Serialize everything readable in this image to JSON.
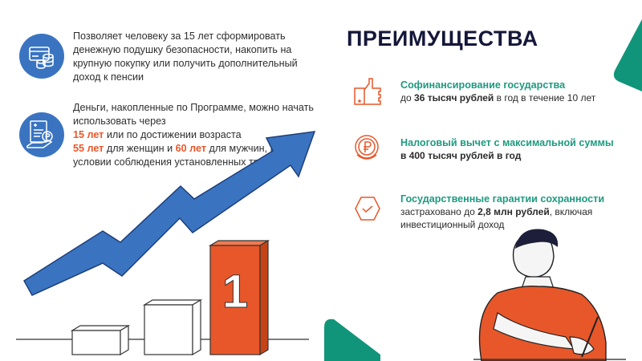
{
  "left": {
    "item1": {
      "text": "Позволяет человеку за 15 лет сформировать денежную подушку безопасности, накопить на крупную покупку или получить дополнительный доход к пенсии",
      "icon": "cards-coins-icon"
    },
    "item2": {
      "icon": "document-hand-coin-icon",
      "t1": "Деньги, накопленные по Программе, можно начать использовать через",
      "h1": "15 лет",
      "t2": " или по достижении возраста",
      "h2": "55 лет",
      "t3": " для женщин и ",
      "h3": "60 лет",
      "t4": " для мужчин, при условии соблюдения установленных требований"
    },
    "bar_label": "1"
  },
  "right": {
    "title": "ПРЕИМУЩЕСТВА",
    "benefits": [
      {
        "icon": "thumbs-up-icon",
        "heading": "Софинансирование государства",
        "pre": "до ",
        "bold": "36 тысяч рублей",
        "post": " в год в течение 10 лет"
      },
      {
        "icon": "ruble-coin-icon",
        "heading": "Налоговый вычет с максимальной суммы",
        "pre": "",
        "bold": "в 400 тысяч рублей в год",
        "post": ""
      },
      {
        "icon": "hexagon-check-icon",
        "heading": "Государственные гарантии сохранности",
        "pre": "застраховано до ",
        "bold": "2,8 млн рублей",
        "post": ", включая инвестиционный доход"
      }
    ]
  },
  "colors": {
    "blue": "#3a74c1",
    "orange": "#e8572a",
    "teal": "#1e9a80",
    "navy": "#15173a"
  }
}
